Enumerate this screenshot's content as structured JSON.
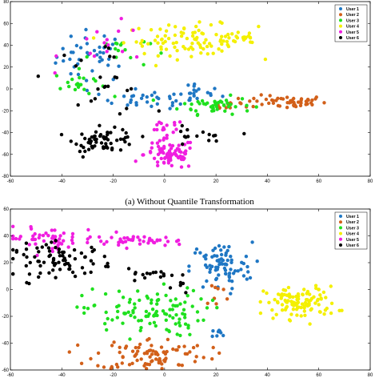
{
  "caption_a": "(a) Without Quantile Transformation",
  "legend_labels": [
    "User 1",
    "User 2",
    "User 3",
    "User 4",
    "User 5",
    "User 6"
  ],
  "colors": {
    "User 1": "#1f77c4",
    "User 2": "#d2601a",
    "User 3": "#1ee01e",
    "User 4": "#f4f000",
    "User 5": "#f01ee0",
    "User 6": "#000000"
  },
  "chart_data": [
    {
      "type": "scatter",
      "title": "",
      "xlabel": "",
      "ylabel": "",
      "xlim": [
        -60,
        80
      ],
      "ylim": [
        -80,
        80
      ],
      "xticks": [
        -60,
        -40,
        -20,
        0,
        20,
        40,
        60,
        80
      ],
      "yticks": [
        -80,
        -60,
        -40,
        -20,
        0,
        20,
        40,
        60,
        80
      ],
      "x_tick_labels": [
        "-60",
        "-40",
        "-20",
        "0",
        "20",
        "40",
        "60",
        "80"
      ],
      "y_tick_labels": [
        "-80",
        "-60",
        "-40",
        "-20",
        "0",
        "20",
        "40",
        "60",
        "80"
      ],
      "grid": false,
      "legend_position": "top-right",
      "series": [
        {
          "name": "User 1",
          "clusters": [
            {
              "cx": -28,
              "cy": 30,
              "sx": 7,
              "sy": 12,
              "n": 40
            },
            {
              "cx": -5,
              "cy": -10,
              "sx": 10,
              "sy": 4,
              "n": 35
            },
            {
              "cx": 12,
              "cy": -4,
              "sx": 5,
              "sy": 5,
              "n": 15
            }
          ]
        },
        {
          "name": "User 2",
          "clusters": [
            {
              "cx": 47,
              "cy": -12,
              "sx": 8,
              "sy": 3,
              "n": 50
            },
            {
              "cx": 25,
              "cy": -14,
              "sx": 4,
              "sy": 3,
              "n": 10
            }
          ]
        },
        {
          "name": "User 3",
          "clusters": [
            {
              "cx": 20,
              "cy": -15,
              "sx": 7,
              "sy": 4,
              "n": 45
            },
            {
              "cx": -33,
              "cy": 5,
              "sx": 5,
              "sy": 6,
              "n": 20
            },
            {
              "cx": -18,
              "cy": 35,
              "sx": 6,
              "sy": 8,
              "n": 15
            }
          ]
        },
        {
          "name": "User 4",
          "clusters": [
            {
              "cx": 10,
              "cy": 45,
              "sx": 13,
              "sy": 7,
              "n": 90
            },
            {
              "cx": 27,
              "cy": 44,
              "sx": 6,
              "sy": 4,
              "n": 20
            }
          ]
        },
        {
          "name": "User 5",
          "clusters": [
            {
              "cx": 2,
              "cy": -60,
              "sx": 5,
              "sy": 7,
              "n": 80
            },
            {
              "cx": 0,
              "cy": -36,
              "sx": 4,
              "sy": 4,
              "n": 15
            },
            {
              "cx": -20,
              "cy": 40,
              "sx": 10,
              "sy": 10,
              "n": 15
            }
          ]
        },
        {
          "name": "User 6",
          "clusters": [
            {
              "cx": -23,
              "cy": -47,
              "sx": 6,
              "sy": 5,
              "n": 60
            },
            {
              "cx": -26,
              "cy": 10,
              "sx": 10,
              "sy": 18,
              "n": 25
            },
            {
              "cx": 12,
              "cy": -45,
              "sx": 6,
              "sy": 5,
              "n": 15
            }
          ]
        }
      ]
    },
    {
      "type": "scatter",
      "title": "",
      "xlabel": "",
      "ylabel": "",
      "xlim": [
        -60,
        80
      ],
      "ylim": [
        -60,
        60
      ],
      "xticks": [
        -60,
        -40,
        -20,
        0,
        20,
        40,
        60,
        80
      ],
      "yticks": [
        -60,
        -40,
        -20,
        0,
        20,
        40,
        60
      ],
      "x_tick_labels": [
        "-60",
        "-40",
        "-20",
        "0",
        "20",
        "40",
        "60",
        "80"
      ],
      "y_tick_labels": [
        "-60",
        "-40",
        "-20",
        "0",
        "20",
        "40",
        "60"
      ],
      "grid": false,
      "legend_position": "top-right",
      "series": [
        {
          "name": "User 1",
          "clusters": [
            {
              "cx": 22,
              "cy": 17,
              "sx": 6,
              "sy": 9,
              "n": 80
            },
            {
              "cx": 22,
              "cy": -33,
              "sx": 2,
              "sy": 2,
              "n": 8
            }
          ]
        },
        {
          "name": "User 2",
          "clusters": [
            {
              "cx": -5,
              "cy": -48,
              "sx": 11,
              "sy": 6,
              "n": 90
            },
            {
              "cx": 20,
              "cy": -5,
              "sx": 3,
              "sy": 6,
              "n": 8
            }
          ]
        },
        {
          "name": "User 3",
          "clusters": [
            {
              "cx": -8,
              "cy": -17,
              "sx": 12,
              "sy": 9,
              "n": 110
            }
          ]
        },
        {
          "name": "User 4",
          "clusters": [
            {
              "cx": 53,
              "cy": -10,
              "sx": 7,
              "sy": 6,
              "n": 110
            }
          ]
        },
        {
          "name": "User 5",
          "clusters": [
            {
              "cx": -45,
              "cy": 38,
              "sx": 10,
              "sy": 4,
              "n": 55
            },
            {
              "cx": -10,
              "cy": 36,
              "sx": 9,
              "sy": 2,
              "n": 40
            }
          ]
        },
        {
          "name": "User 6",
          "clusters": [
            {
              "cx": -40,
              "cy": 22,
              "sx": 10,
              "sy": 6,
              "n": 80
            },
            {
              "cx": -5,
              "cy": 11,
              "sx": 6,
              "sy": 2,
              "n": 15
            },
            {
              "cx": 7,
              "cy": 2,
              "sx": 2,
              "sy": 3,
              "n": 5
            }
          ]
        }
      ]
    }
  ]
}
